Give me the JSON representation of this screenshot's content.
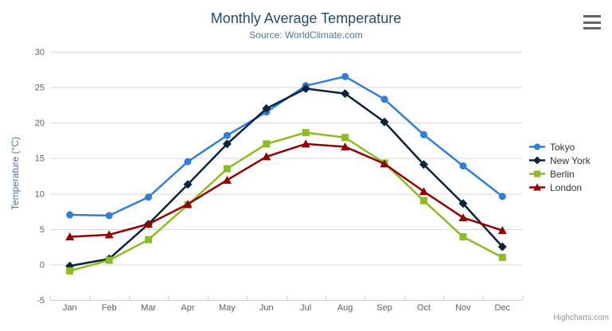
{
  "chart": {
    "credits_label": "Highcharts.com",
    "context_menu_icon": "hamburger-icon"
  },
  "colors": {
    "background": "#ffffff",
    "title": "#274b6d",
    "subtitle": "#4d759e",
    "axis_title": "#4d759e",
    "axis_label": "#606060",
    "grid_line": "#d8d8d8",
    "axis_line": "#c0d0e0",
    "legend_text": "#333333",
    "credits": "#909090",
    "menu_icon": "#666666"
  },
  "chart_data": {
    "type": "line",
    "title": "Monthly Average Temperature",
    "subtitle": "Source: WorldClimate.com",
    "xlabel": "",
    "ylabel": "Temperature (°C)",
    "ylim": [
      -5,
      30
    ],
    "yticks": [
      -5,
      0,
      5,
      10,
      15,
      20,
      25,
      30
    ],
    "grid": true,
    "legend_position": "right-middle",
    "categories": [
      "Jan",
      "Feb",
      "Mar",
      "Apr",
      "May",
      "Jun",
      "Jul",
      "Aug",
      "Sep",
      "Oct",
      "Nov",
      "Dec"
    ],
    "series": [
      {
        "name": "Tokyo",
        "color": "#2f7ed8",
        "marker": "circle",
        "values": [
          7.0,
          6.9,
          9.5,
          14.5,
          18.2,
          21.5,
          25.2,
          26.5,
          23.3,
          18.3,
          13.9,
          9.6
        ]
      },
      {
        "name": "New York",
        "color": "#0d233a",
        "marker": "diamond",
        "values": [
          -0.2,
          0.8,
          5.7,
          11.3,
          17.0,
          22.0,
          24.8,
          24.1,
          20.1,
          14.1,
          8.6,
          2.5
        ]
      },
      {
        "name": "Berlin",
        "color": "#8bbc21",
        "marker": "square",
        "values": [
          -0.9,
          0.6,
          3.5,
          8.4,
          13.5,
          17.0,
          18.6,
          17.9,
          14.3,
          9.0,
          3.9,
          1.0
        ]
      },
      {
        "name": "London",
        "color": "#910000",
        "marker": "triangle",
        "values": [
          3.9,
          4.2,
          5.7,
          8.5,
          11.9,
          15.2,
          17.0,
          16.6,
          14.2,
          10.3,
          6.6,
          4.8
        ]
      }
    ]
  }
}
